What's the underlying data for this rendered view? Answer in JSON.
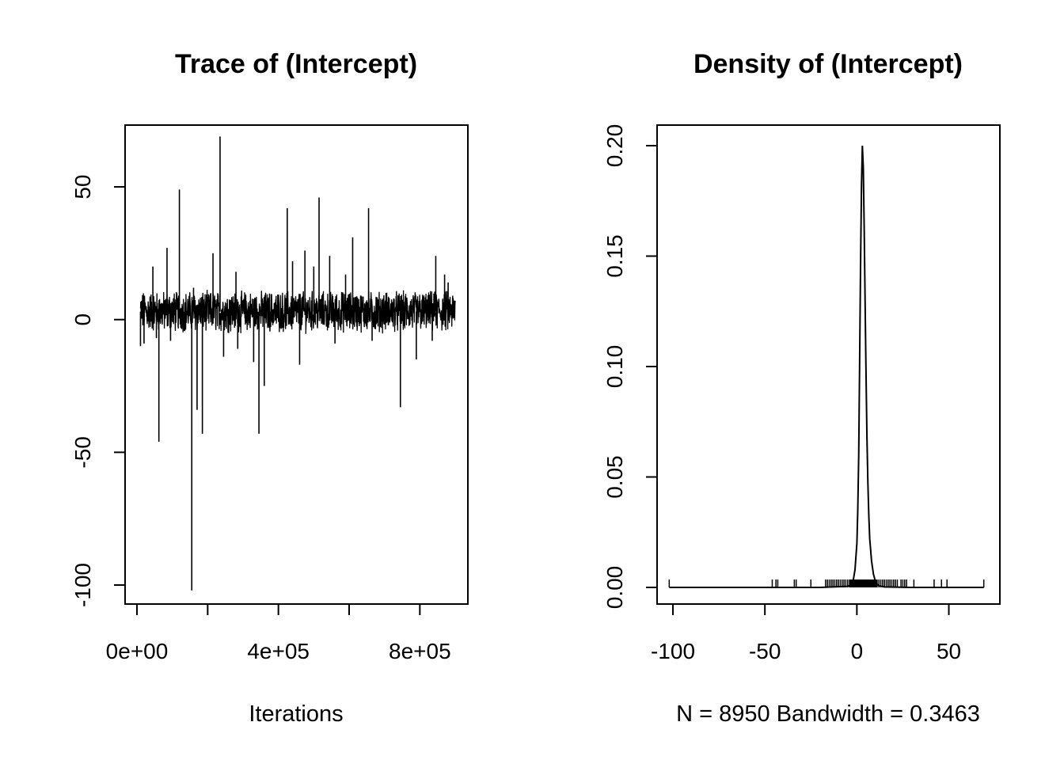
{
  "chart_data": [
    {
      "type": "line",
      "title": "Trace of (Intercept)",
      "xlabel": "Iterations",
      "ylabel": "",
      "xlim": [
        0,
        900000
      ],
      "ylim": [
        -100,
        70
      ],
      "x_ticks": [
        0,
        200000,
        400000,
        600000,
        800000
      ],
      "x_tick_labels": [
        "0e+00",
        "",
        "4e+05",
        "",
        "8e+05"
      ],
      "y_ticks": [
        -100,
        -50,
        0,
        50
      ],
      "y_tick_labels": [
        "-100",
        "-50",
        "0",
        "50"
      ],
      "grid": false,
      "legend": "none",
      "band": {
        "center": 3,
        "low": -2,
        "high": 8
      },
      "spikes": [
        {
          "x": 10000,
          "y": -10
        },
        {
          "x": 20000,
          "y": -9
        },
        {
          "x": 45000,
          "y": 20
        },
        {
          "x": 55000,
          "y": -7
        },
        {
          "x": 62000,
          "y": -46
        },
        {
          "x": 85000,
          "y": 27
        },
        {
          "x": 95000,
          "y": -8
        },
        {
          "x": 120000,
          "y": 49
        },
        {
          "x": 135000,
          "y": -4
        },
        {
          "x": 155000,
          "y": -102
        },
        {
          "x": 160000,
          "y": 12
        },
        {
          "x": 170000,
          "y": -34
        },
        {
          "x": 185000,
          "y": -43
        },
        {
          "x": 215000,
          "y": 25
        },
        {
          "x": 235000,
          "y": 69
        },
        {
          "x": 245000,
          "y": -14
        },
        {
          "x": 280000,
          "y": 18
        },
        {
          "x": 285000,
          "y": -11
        },
        {
          "x": 330000,
          "y": -16
        },
        {
          "x": 345000,
          "y": -43
        },
        {
          "x": 360000,
          "y": -25
        },
        {
          "x": 425000,
          "y": 42
        },
        {
          "x": 440000,
          "y": 22
        },
        {
          "x": 460000,
          "y": -17
        },
        {
          "x": 475000,
          "y": 26
        },
        {
          "x": 500000,
          "y": 20
        },
        {
          "x": 515000,
          "y": 46
        },
        {
          "x": 545000,
          "y": 24
        },
        {
          "x": 560000,
          "y": -9
        },
        {
          "x": 590000,
          "y": 17
        },
        {
          "x": 610000,
          "y": 31
        },
        {
          "x": 655000,
          "y": 42
        },
        {
          "x": 665000,
          "y": -8
        },
        {
          "x": 745000,
          "y": -33
        },
        {
          "x": 790000,
          "y": -15
        },
        {
          "x": 835000,
          "y": -8
        },
        {
          "x": 845000,
          "y": 24
        },
        {
          "x": 870000,
          "y": 17
        },
        {
          "x": 880000,
          "y": 14
        }
      ]
    },
    {
      "type": "line",
      "title": "Density of (Intercept)",
      "xlabel": "N = 8950   Bandwidth = 0.3463",
      "ylabel": "",
      "xlim": [
        -100,
        70
      ],
      "ylim": [
        0,
        0.2
      ],
      "x_ticks": [
        -100,
        -50,
        0,
        50
      ],
      "x_tick_labels": [
        "-100",
        "-50",
        "0",
        "50"
      ],
      "y_ticks": [
        0,
        0.05,
        0.1,
        0.15,
        0.2
      ],
      "y_tick_labels": [
        "0.00",
        "0.05",
        "0.10",
        "0.15",
        "0.20"
      ],
      "grid": false,
      "legend": "none",
      "curve": {
        "x": [
          -102,
          -20,
          -5,
          -3,
          -2,
          -1,
          0,
          0.5,
          1,
          1.5,
          2,
          2.5,
          3,
          3.5,
          4,
          4.5,
          5,
          5.5,
          6,
          6.5,
          7,
          8,
          9,
          10,
          11,
          12,
          15,
          30,
          69
        ],
        "y": [
          0,
          0,
          0.0005,
          0.001,
          0.003,
          0.008,
          0.02,
          0.035,
          0.06,
          0.1,
          0.145,
          0.182,
          0.2,
          0.19,
          0.163,
          0.128,
          0.095,
          0.068,
          0.047,
          0.032,
          0.022,
          0.012,
          0.006,
          0.003,
          0.0015,
          0.0007,
          0.0002,
          0,
          0
        ]
      },
      "rug": [
        -102,
        -46,
        -44,
        -43,
        -34,
        -33,
        -25,
        -17,
        -16,
        -15,
        -14,
        -13,
        -12,
        -11,
        -10,
        -9,
        -8,
        -7,
        -6,
        -5,
        12,
        13,
        14,
        15,
        16,
        17,
        18,
        19,
        20,
        21,
        22,
        24,
        25,
        26,
        27,
        31,
        42,
        46,
        49,
        69
      ]
    }
  ]
}
